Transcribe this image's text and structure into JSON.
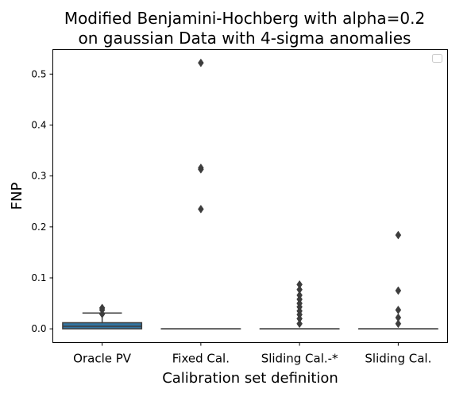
{
  "chart_data": {
    "type": "box",
    "title_lines": [
      "Modified Benjamini-Hochberg with alpha=0.2",
      "on gaussian Data with 4-sigma anomalies"
    ],
    "xlabel": "Calibration set definition",
    "ylabel": "FNP",
    "ylim": [
      -0.027,
      0.548
    ],
    "yticks": [
      "0.0",
      "0.1",
      "0.2",
      "0.3",
      "0.4",
      "0.5"
    ],
    "ytick_values": [
      0.0,
      0.1,
      0.2,
      0.3,
      0.4,
      0.5
    ],
    "categories": [
      "Oracle PV",
      "Fixed Cal.",
      "Sliding Cal.-*",
      "Sliding Cal."
    ],
    "legend": {
      "location": "upper right",
      "entries": []
    },
    "grid": false,
    "boxes": [
      {
        "category": "Oracle PV",
        "q1": 0.0,
        "median": 0.005,
        "q3": 0.012,
        "whisker_low": 0.0,
        "whisker_high": 0.031,
        "fliers": [
          0.041,
          0.037,
          0.029
        ],
        "color": "#3274a1"
      },
      {
        "category": "Fixed Cal.",
        "q1": 0.0,
        "median": 0.0,
        "q3": 0.0,
        "whisker_low": 0.0,
        "whisker_high": 0.0,
        "fliers": [
          0.522,
          0.316,
          0.313,
          0.235
        ],
        "color": "#e1812c"
      },
      {
        "category": "Sliding Cal.-*",
        "q1": 0.0,
        "median": 0.0,
        "q3": 0.0,
        "whisker_low": 0.0,
        "whisker_high": 0.0,
        "fliers": [
          0.087,
          0.077,
          0.066,
          0.058,
          0.05,
          0.043,
          0.035,
          0.028,
          0.02,
          0.01
        ],
        "color": "#3a923a"
      },
      {
        "category": "Sliding Cal.",
        "q1": 0.0,
        "median": 0.0,
        "q3": 0.0,
        "whisker_low": 0.0,
        "whisker_high": 0.0,
        "fliers": [
          0.184,
          0.075,
          0.037,
          0.022,
          0.01
        ],
        "color": "#c03d3e"
      }
    ]
  },
  "colors": {
    "line": "#3d3d3d",
    "axes": "#000000",
    "background": "#ffffff"
  }
}
